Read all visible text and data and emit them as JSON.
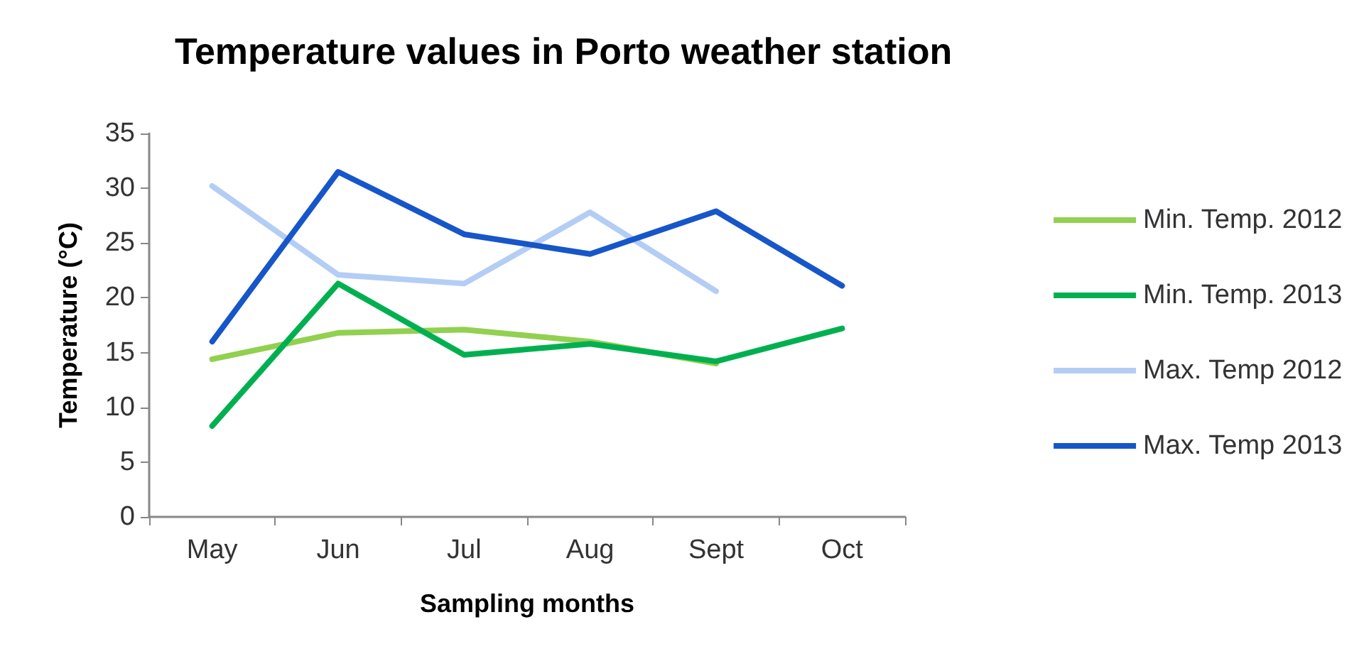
{
  "chart_data": {
    "type": "line",
    "title": "Temperature values in Porto weather station",
    "xlabel": "Sampling months",
    "ylabel": "Temperature (°C)",
    "categories": [
      "May",
      "Jun",
      "Jul",
      "Aug",
      "Sept",
      "Oct"
    ],
    "series": [
      {
        "name": "Min. Temp. 2012",
        "color": "#92d050",
        "values": [
          14.4,
          16.8,
          17.1,
          16.0,
          14.0,
          null
        ]
      },
      {
        "name": "Min. Temp. 2013",
        "color": "#00b050",
        "values": [
          8.3,
          21.3,
          14.8,
          15.8,
          14.2,
          17.2
        ]
      },
      {
        "name": "Max. Temp 2012",
        "color": "#b4cdf5",
        "values": [
          30.2,
          22.1,
          21.3,
          27.8,
          20.6,
          null
        ]
      },
      {
        "name": "Max. Temp 2013",
        "color": "#1656c8",
        "values": [
          16.0,
          31.5,
          25.8,
          24.0,
          27.9,
          21.1
        ]
      }
    ],
    "ylim": [
      0,
      35
    ],
    "yticks": [
      0,
      5,
      10,
      15,
      20,
      25,
      30,
      35
    ],
    "grid": false,
    "legend": "right",
    "marker": "none",
    "line_style": "solid"
  }
}
